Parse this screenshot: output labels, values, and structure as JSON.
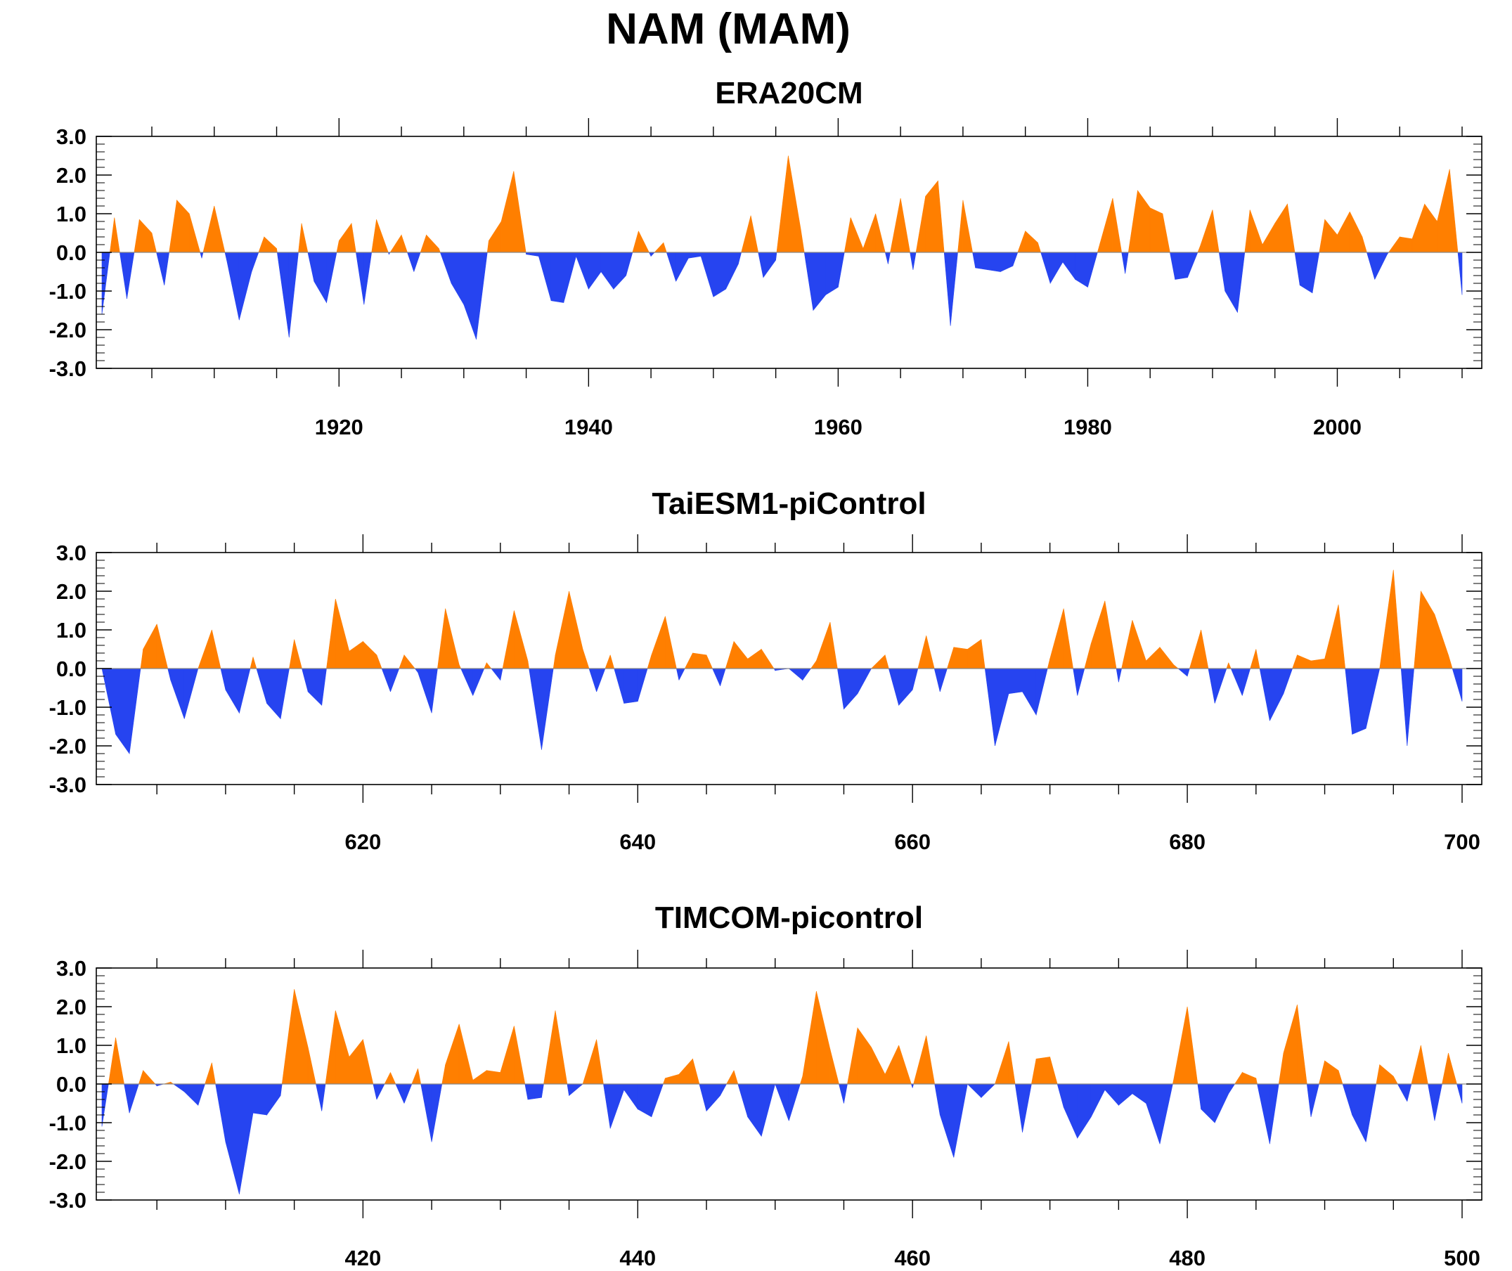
{
  "title": "NAM (MAM)",
  "colors": {
    "positive": "#ff7f00",
    "negative": "#2644f0",
    "axis": "#000000"
  },
  "chart_data": [
    {
      "type": "area",
      "title": "ERA20CM",
      "xlim": [
        1901,
        2010
      ],
      "ylim": [
        -3,
        3
      ],
      "yticks": [
        "3.0",
        "2.0",
        "1.0",
        "0.0",
        "-1.0",
        "-2.0",
        "-3.0"
      ],
      "xticks": [
        "1920",
        "1940",
        "1960",
        "1980",
        "2000"
      ],
      "x_start": 1901,
      "values": [
        -1.6,
        0.9,
        -1.2,
        0.85,
        0.5,
        -0.85,
        1.35,
        1.0,
        -0.15,
        1.2,
        -0.2,
        -1.75,
        -0.5,
        0.4,
        0.1,
        -2.2,
        0.75,
        -0.75,
        -1.3,
        0.3,
        0.75,
        -1.35,
        0.85,
        -0.05,
        0.45,
        -0.5,
        0.45,
        0.1,
        -0.8,
        -1.35,
        -2.25,
        0.3,
        0.8,
        2.1,
        -0.05,
        -0.1,
        -1.25,
        -1.3,
        -0.1,
        -0.95,
        -0.5,
        -0.95,
        -0.6,
        0.55,
        -0.1,
        0.25,
        -0.75,
        -0.15,
        -0.1,
        -1.15,
        -0.95,
        -0.3,
        0.95,
        -0.65,
        -0.2,
        2.5,
        0.6,
        -1.5,
        -1.1,
        -0.9,
        0.9,
        0.1,
        1.0,
        -0.3,
        1.4,
        -0.45,
        1.45,
        1.85,
        -1.9,
        1.35,
        -0.4,
        -0.45,
        -0.5,
        -0.35,
        0.55,
        0.25,
        -0.8,
        -0.25,
        -0.7,
        -0.9,
        0.25,
        1.4,
        -0.55,
        1.6,
        1.15,
        1.0,
        -0.7,
        -0.65,
        0.15,
        1.1,
        -1.0,
        -1.55,
        1.1,
        0.2,
        0.75,
        1.25,
        -0.85,
        -1.05,
        0.85,
        0.45,
        1.05,
        0.4,
        -0.7,
        -0.05,
        0.4,
        0.35,
        1.25,
        0.8,
        2.15,
        -1.1
      ]
    },
    {
      "type": "area",
      "title": "TaiESM1-piControl",
      "xlim": [
        601,
        700
      ],
      "ylim": [
        -3,
        3
      ],
      "yticks": [
        "3.0",
        "2.0",
        "1.0",
        "0.0",
        "-1.0",
        "-2.0",
        "-3.0"
      ],
      "xticks": [
        "620",
        "640",
        "660",
        "680",
        "700"
      ],
      "x_start": 601,
      "values": [
        0.0,
        -1.7,
        -2.2,
        0.5,
        1.15,
        -0.3,
        -1.3,
        0.0,
        1.0,
        -0.55,
        -1.15,
        0.3,
        -0.9,
        -1.3,
        0.75,
        -0.6,
        -0.95,
        1.8,
        0.45,
        0.7,
        0.35,
        -0.6,
        0.35,
        -0.1,
        -1.15,
        1.55,
        0.1,
        -0.7,
        0.15,
        -0.3,
        1.5,
        0.2,
        -2.1,
        0.35,
        2.0,
        0.5,
        -0.6,
        0.35,
        -0.9,
        -0.85,
        0.35,
        1.35,
        -0.3,
        0.4,
        0.35,
        -0.45,
        0.7,
        0.25,
        0.5,
        -0.05,
        0.0,
        -0.3,
        0.2,
        1.2,
        -1.05,
        -0.65,
        0.0,
        0.35,
        -0.95,
        -0.55,
        0.85,
        -0.6,
        0.55,
        0.5,
        0.75,
        -2.0,
        -0.65,
        -0.6,
        -1.2,
        0.25,
        1.55,
        -0.7,
        0.65,
        1.75,
        -0.35,
        1.25,
        0.2,
        0.55,
        0.1,
        -0.2,
        1.0,
        -0.9,
        0.15,
        -0.7,
        0.5,
        -1.35,
        -0.65,
        0.35,
        0.2,
        0.25,
        1.65,
        -1.7,
        -1.55,
        0.0,
        2.55,
        -2.0,
        2.0,
        1.4,
        0.35,
        -0.85
      ]
    },
    {
      "type": "area",
      "title": "TIMCOM-picontrol",
      "xlim": [
        401,
        500
      ],
      "ylim": [
        -3,
        3
      ],
      "yticks": [
        "3.0",
        "2.0",
        "1.0",
        "0.0",
        "-1.0",
        "-2.0",
        "-3.0"
      ],
      "xticks": [
        "420",
        "440",
        "460",
        "480",
        "500"
      ],
      "x_start": 401,
      "values": [
        -1.1,
        1.2,
        -0.75,
        0.35,
        -0.05,
        0.05,
        -0.2,
        -0.55,
        0.55,
        -1.5,
        -2.85,
        -0.75,
        -0.8,
        -0.3,
        2.45,
        0.95,
        -0.7,
        1.9,
        0.7,
        1.15,
        -0.4,
        0.3,
        -0.5,
        0.4,
        -1.5,
        0.5,
        1.55,
        0.1,
        0.35,
        0.3,
        1.5,
        -0.4,
        -0.35,
        1.9,
        -0.3,
        0.0,
        1.15,
        -1.15,
        -0.15,
        -0.65,
        -0.85,
        0.15,
        0.25,
        0.65,
        -0.7,
        -0.3,
        0.35,
        -0.85,
        -1.35,
        0.0,
        -0.95,
        0.2,
        2.4,
        0.9,
        -0.5,
        1.45,
        0.95,
        0.25,
        1.0,
        -0.1,
        1.25,
        -0.8,
        -1.9,
        0.0,
        -0.35,
        0.0,
        1.1,
        -1.25,
        0.65,
        0.7,
        -0.6,
        -1.4,
        -0.85,
        -0.15,
        -0.55,
        -0.25,
        -0.5,
        -1.55,
        0.1,
        2.0,
        -0.65,
        -1.0,
        -0.25,
        0.3,
        0.15,
        -1.55,
        0.8,
        2.05,
        -0.85,
        0.6,
        0.35,
        -0.8,
        -1.5,
        0.5,
        0.2,
        -0.45,
        1.0,
        -0.95,
        0.8,
        -0.5
      ]
    }
  ]
}
